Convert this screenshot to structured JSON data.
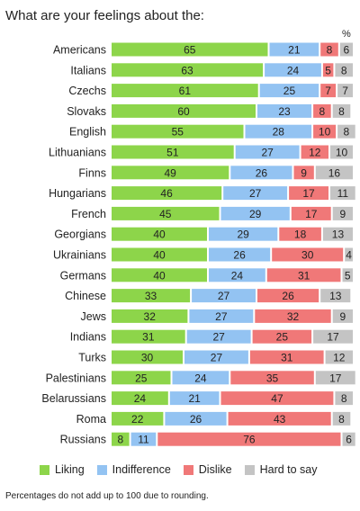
{
  "chart_data": {
    "type": "bar",
    "stacked": true,
    "orientation": "horizontal",
    "title": "What are your feelings about the:",
    "unit_label": "%",
    "footnote": "Percentages do not add up to 100 due to rounding.",
    "legend_position": "bottom",
    "grid": false,
    "xlim": [
      0,
      100
    ],
    "categories": [
      "Americans",
      "Italians",
      "Czechs",
      "Slovaks",
      "English",
      "Lithuanians",
      "Finns",
      "Hungarians",
      "French",
      "Georgians",
      "Ukrainians",
      "Germans",
      "Chinese",
      "Jews",
      "Indians",
      "Turks",
      "Palestinians",
      "Belarussians",
      "Roma",
      "Russians"
    ],
    "series": [
      {
        "name": "Liking",
        "color": "#8dd54a",
        "values": [
          65,
          63,
          61,
          60,
          55,
          51,
          49,
          46,
          45,
          40,
          40,
          40,
          33,
          32,
          31,
          30,
          25,
          24,
          22,
          8
        ]
      },
      {
        "name": "Indifference",
        "color": "#93c3f2",
        "values": [
          21,
          24,
          25,
          23,
          28,
          27,
          26,
          27,
          29,
          29,
          26,
          24,
          27,
          27,
          27,
          27,
          24,
          21,
          26,
          11
        ]
      },
      {
        "name": "Dislike",
        "color": "#f07878",
        "values": [
          8,
          5,
          7,
          8,
          10,
          12,
          9,
          17,
          17,
          18,
          30,
          31,
          26,
          32,
          25,
          31,
          35,
          47,
          43,
          76
        ]
      },
      {
        "name": "Hard to say",
        "color": "#c4c4c4",
        "values": [
          6,
          8,
          7,
          8,
          8,
          10,
          16,
          11,
          9,
          13,
          4,
          5,
          13,
          9,
          17,
          12,
          17,
          8,
          8,
          6
        ]
      }
    ]
  }
}
